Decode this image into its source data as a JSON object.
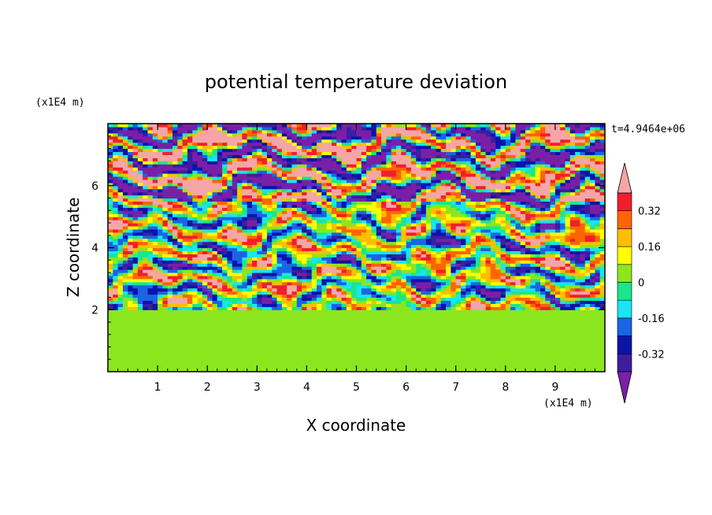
{
  "chart_data": {
    "type": "heatmap",
    "title": "potential temperature deviation",
    "xlabel": "X coordinate",
    "ylabel": "Z coordinate",
    "x_unit": "(x1E4 m)",
    "y_unit": "(x1E4 m)",
    "time_label": "t=4.9464e+06",
    "xlim": [
      0,
      10
    ],
    "ylim": [
      0,
      8
    ],
    "x_ticks": [
      1,
      2,
      3,
      4,
      5,
      6,
      7,
      8,
      9
    ],
    "y_ticks": [
      2,
      4,
      6
    ],
    "grid": false,
    "legend_placement": "right",
    "colorbar": {
      "levels": [
        -0.4,
        -0.32,
        -0.24,
        -0.16,
        -0.08,
        0,
        0.08,
        0.16,
        0.24,
        0.32,
        0.4
      ],
      "tick_labels": [
        "0.32",
        "0.16",
        "0",
        "-0.16",
        "-0.32"
      ],
      "tick_values": [
        0.32,
        0.16,
        0,
        -0.16,
        -0.32
      ],
      "under_color": "#7a1fa8",
      "over_color": "#f4a6a6",
      "colors": [
        "#3c1ea0",
        "#0a14a8",
        "#1a64e6",
        "#18e6f0",
        "#1ae68c",
        "#8ce61e",
        "#ffff00",
        "#ffbe00",
        "#ff6400",
        "#f01e2e"
      ]
    },
    "field_description_regions": [
      {
        "z_range": [
          0,
          2
        ],
        "values": [
          0,
          0.08
        ]
      },
      {
        "z_range": [
          2,
          5.5
        ],
        "values": [
          -0.4,
          0.4
        ]
      },
      {
        "z_range": [
          5.5,
          8
        ],
        "values": [
          -0.4,
          0.4
        ]
      }
    ]
  }
}
